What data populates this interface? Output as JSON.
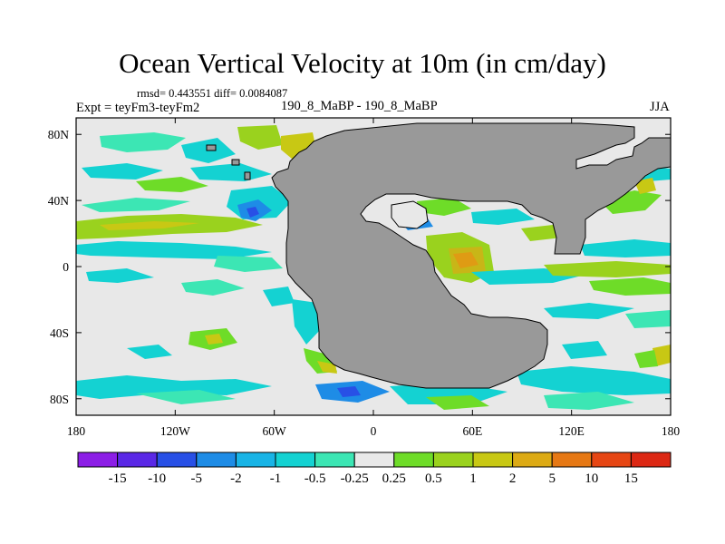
{
  "title": "Ocean Vertical Velocity at 10m (in cm/day)",
  "stats": "rmsd= 0.443551  diff= 0.0084087",
  "experiment": "Expt = teyFm3-teyFm2",
  "center_label": "190_8_MaBP - 190_8_MaBP",
  "season": "JJA",
  "units": "cm/day",
  "x_axis": {
    "ticks": [
      {
        "lon": -180,
        "label": "180"
      },
      {
        "lon": -120,
        "label": "120W"
      },
      {
        "lon": -60,
        "label": "60W"
      },
      {
        "lon": 0,
        "label": "0"
      },
      {
        "lon": 60,
        "label": "60E"
      },
      {
        "lon": 120,
        "label": "120E"
      },
      {
        "lon": 180,
        "label": "180"
      }
    ],
    "range": [
      -180,
      180
    ]
  },
  "y_axis": {
    "ticks": [
      {
        "lat": 80,
        "label": "80N"
      },
      {
        "lat": 40,
        "label": "40N"
      },
      {
        "lat": 0,
        "label": "0"
      },
      {
        "lat": -40,
        "label": "40S"
      },
      {
        "lat": -80,
        "label": "80S"
      }
    ],
    "range": [
      -90,
      90
    ]
  },
  "colorbar": {
    "levels": [
      "-15",
      "-10",
      "-5",
      "-2",
      "-1",
      "-0.5",
      "-0.25",
      "0.25",
      "0.5",
      "1",
      "2",
      "5",
      "10",
      "15"
    ],
    "colors": [
      "#8c1ee6",
      "#5a28e6",
      "#2850e6",
      "#1e8ce6",
      "#19b4e6",
      "#14d2d2",
      "#3ce6b4",
      "#e8e8e8",
      "#6edc28",
      "#9ad21e",
      "#c8c814",
      "#dcaa14",
      "#e67814",
      "#e64614",
      "#dc2814"
    ]
  },
  "colors": {
    "land": "#999999",
    "ocean": "#e8e8e8"
  }
}
